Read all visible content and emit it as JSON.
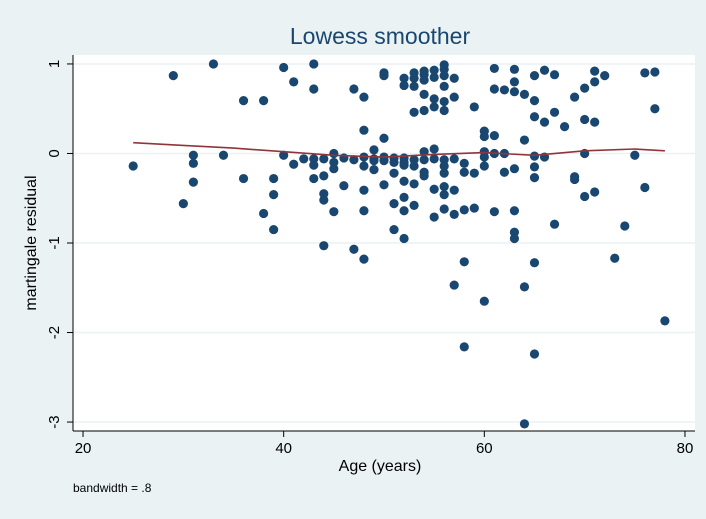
{
  "colors": {
    "background": "#eaf2f3",
    "plot_area": "#ffffff",
    "points": "#1a476f",
    "smoother": "#90353b",
    "grid": "#eaf2f3",
    "text": "#000000",
    "title": "#1a476f"
  },
  "note": "bandwidth = .8",
  "chart_data": {
    "type": "scatter",
    "title": "Lowess smoother",
    "xlabel": "Age (years)",
    "ylabel": "martingale residual",
    "xlim": [
      19,
      81
    ],
    "ylim": [
      -3.1,
      1.1
    ],
    "xticks": [
      20,
      40,
      60,
      80
    ],
    "yticks": [
      1,
      0,
      -1,
      -2,
      -3
    ],
    "grid": true,
    "legend": "none",
    "points": [
      [
        25,
        -0.14
      ],
      [
        29,
        0.87
      ],
      [
        30,
        -0.56
      ],
      [
        31,
        -0.02
      ],
      [
        31,
        -0.11
      ],
      [
        31,
        -0.32
      ],
      [
        33,
        1.0
      ],
      [
        34,
        -0.02
      ],
      [
        36,
        0.59
      ],
      [
        36,
        -0.28
      ],
      [
        38,
        0.59
      ],
      [
        38,
        -0.67
      ],
      [
        39,
        -0.28
      ],
      [
        39,
        -0.46
      ],
      [
        39,
        -0.85
      ],
      [
        40,
        0.96
      ],
      [
        40,
        -0.02
      ],
      [
        41,
        0.8
      ],
      [
        41,
        -0.12
      ],
      [
        42,
        -0.06
      ],
      [
        43,
        1.0
      ],
      [
        43,
        0.72
      ],
      [
        43,
        -0.06
      ],
      [
        43,
        -0.13
      ],
      [
        43,
        -0.28
      ],
      [
        44,
        -0.06
      ],
      [
        44,
        -0.25
      ],
      [
        44,
        -0.45
      ],
      [
        44,
        -0.52
      ],
      [
        44,
        -1.03
      ],
      [
        45,
        0.0
      ],
      [
        45,
        -0.1
      ],
      [
        45,
        -0.17
      ],
      [
        45,
        -0.65
      ],
      [
        46,
        -0.05
      ],
      [
        46,
        -0.36
      ],
      [
        47,
        0.72
      ],
      [
        47,
        -0.07
      ],
      [
        47,
        -1.07
      ],
      [
        48,
        0.63
      ],
      [
        48,
        0.26
      ],
      [
        48,
        -0.04
      ],
      [
        48,
        -0.14
      ],
      [
        48,
        -0.41
      ],
      [
        48,
        -0.64
      ],
      [
        48,
        -1.18
      ],
      [
        49,
        0.04
      ],
      [
        49,
        -0.06
      ],
      [
        49,
        -0.08
      ],
      [
        49,
        -0.18
      ],
      [
        50,
        0.9
      ],
      [
        50,
        0.87
      ],
      [
        50,
        0.17
      ],
      [
        50,
        -0.04
      ],
      [
        50,
        -0.08
      ],
      [
        50,
        -0.35
      ],
      [
        51,
        -0.05
      ],
      [
        51,
        -0.1
      ],
      [
        51,
        -0.22
      ],
      [
        51,
        -0.56
      ],
      [
        51,
        -0.85
      ],
      [
        52,
        0.84
      ],
      [
        52,
        0.76
      ],
      [
        52,
        -0.05
      ],
      [
        52,
        -0.1
      ],
      [
        52,
        -0.13
      ],
      [
        52,
        -0.31
      ],
      [
        52,
        -0.49
      ],
      [
        52,
        -0.64
      ],
      [
        52,
        -0.95
      ],
      [
        53,
        0.9
      ],
      [
        53,
        0.84
      ],
      [
        53,
        0.75
      ],
      [
        53,
        0.46
      ],
      [
        53,
        -0.07
      ],
      [
        53,
        -0.14
      ],
      [
        53,
        -0.34
      ],
      [
        53,
        -0.58
      ],
      [
        54,
        0.92
      ],
      [
        54,
        0.88
      ],
      [
        54,
        0.82
      ],
      [
        54,
        0.66
      ],
      [
        54,
        0.48
      ],
      [
        54,
        0.02
      ],
      [
        54,
        -0.07
      ],
      [
        54,
        -0.21
      ],
      [
        54,
        -0.25
      ],
      [
        55,
        0.93
      ],
      [
        55,
        0.85
      ],
      [
        55,
        0.61
      ],
      [
        55,
        0.52
      ],
      [
        55,
        0.05
      ],
      [
        55,
        -0.06
      ],
      [
        55,
        -0.4
      ],
      [
        55,
        -0.71
      ],
      [
        56,
        0.99
      ],
      [
        56,
        0.94
      ],
      [
        56,
        0.87
      ],
      [
        56,
        0.75
      ],
      [
        56,
        0.58
      ],
      [
        56,
        0.48
      ],
      [
        56,
        -0.07
      ],
      [
        56,
        -0.14
      ],
      [
        56,
        -0.22
      ],
      [
        56,
        -0.37
      ],
      [
        56,
        -0.46
      ],
      [
        56,
        -0.62
      ],
      [
        57,
        0.84
      ],
      [
        57,
        0.63
      ],
      [
        57,
        -0.06
      ],
      [
        57,
        -0.41
      ],
      [
        57,
        -0.68
      ],
      [
        57,
        -1.47
      ],
      [
        58,
        -0.11
      ],
      [
        58,
        -0.21
      ],
      [
        58,
        -0.63
      ],
      [
        58,
        -1.21
      ],
      [
        58,
        -2.16
      ],
      [
        59,
        0.52
      ],
      [
        59,
        -0.22
      ],
      [
        59,
        -0.61
      ],
      [
        60,
        0.25
      ],
      [
        60,
        0.19
      ],
      [
        60,
        0.02
      ],
      [
        60,
        -0.04
      ],
      [
        60,
        -0.14
      ],
      [
        60,
        -1.65
      ],
      [
        61,
        0.95
      ],
      [
        61,
        0.72
      ],
      [
        61,
        0.2
      ],
      [
        61,
        0.0
      ],
      [
        61,
        -0.65
      ],
      [
        62,
        0.71
      ],
      [
        62,
        0.0
      ],
      [
        62,
        -0.21
      ],
      [
        63,
        0.94
      ],
      [
        63,
        0.8
      ],
      [
        63,
        0.69
      ],
      [
        63,
        -0.17
      ],
      [
        63,
        -0.64
      ],
      [
        63,
        -0.88
      ],
      [
        63,
        -0.95
      ],
      [
        64,
        0.66
      ],
      [
        64,
        0.15
      ],
      [
        64,
        -1.49
      ],
      [
        64,
        -3.02
      ],
      [
        65,
        0.87
      ],
      [
        65,
        0.59
      ],
      [
        65,
        0.41
      ],
      [
        65,
        -0.03
      ],
      [
        65,
        -0.15
      ],
      [
        65,
        -0.27
      ],
      [
        65,
        -1.22
      ],
      [
        65,
        -2.24
      ],
      [
        66,
        0.93
      ],
      [
        66,
        0.35
      ],
      [
        66,
        -0.04
      ],
      [
        67,
        0.88
      ],
      [
        67,
        0.46
      ],
      [
        67,
        -0.79
      ],
      [
        68,
        0.3
      ],
      [
        69,
        0.63
      ],
      [
        69,
        -0.26
      ],
      [
        69,
        -0.29
      ],
      [
        70,
        0.73
      ],
      [
        70,
        0.38
      ],
      [
        70,
        0.0
      ],
      [
        70,
        -0.48
      ],
      [
        71,
        0.92
      ],
      [
        71,
        0.8
      ],
      [
        71,
        0.35
      ],
      [
        71,
        -0.43
      ],
      [
        72,
        0.87
      ],
      [
        73,
        -1.17
      ],
      [
        74,
        -0.81
      ],
      [
        75,
        -0.02
      ],
      [
        76,
        0.9
      ],
      [
        76,
        -0.38
      ],
      [
        77,
        0.91
      ],
      [
        77,
        0.5
      ],
      [
        78,
        -1.87
      ]
    ],
    "smoother": [
      [
        25,
        0.12
      ],
      [
        30,
        0.09
      ],
      [
        35,
        0.06
      ],
      [
        40,
        0.02
      ],
      [
        45,
        -0.02
      ],
      [
        50,
        -0.04
      ],
      [
        55,
        -0.01
      ],
      [
        60,
        0.01
      ],
      [
        65,
        -0.02
      ],
      [
        70,
        0.03
      ],
      [
        75,
        0.05
      ],
      [
        78,
        0.03
      ]
    ]
  }
}
